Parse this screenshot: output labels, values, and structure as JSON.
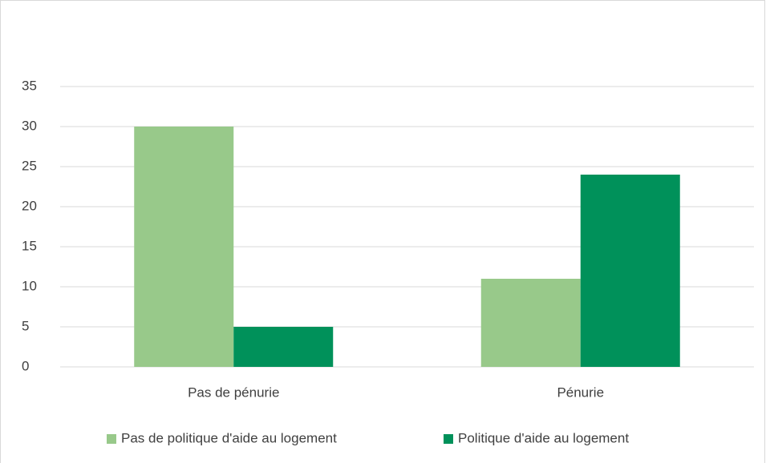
{
  "chart_data": {
    "type": "bar",
    "categories": [
      "Pas de pénurie",
      "Pénurie"
    ],
    "series": [
      {
        "name": "Pas de politique d'aide au logement",
        "color": "#98c98a",
        "values": [
          30,
          11
        ]
      },
      {
        "name": "Politique d'aide au logement",
        "color": "#00915a",
        "values": [
          5,
          24
        ]
      }
    ],
    "ylim": [
      0,
      35
    ],
    "yticks": [
      0,
      5,
      10,
      15,
      20,
      25,
      30,
      35
    ],
    "grid": true,
    "legend": "bottom"
  }
}
